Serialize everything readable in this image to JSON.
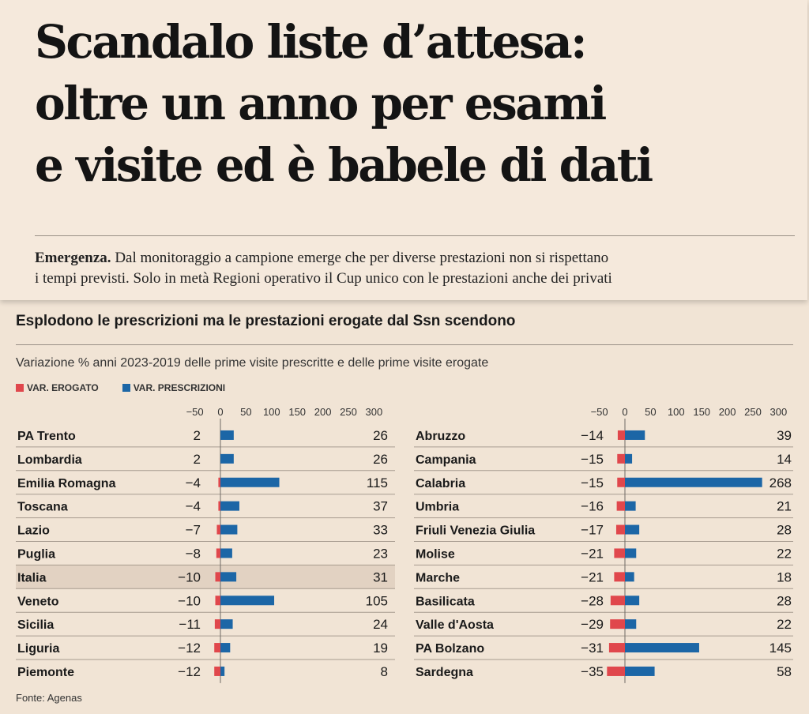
{
  "headline": [
    "Scandalo liste d’attesa:",
    "oltre un anno per esami",
    "e visite ed è babele di dati"
  ],
  "subtitle": {
    "lead": "Emergenza.",
    "line1": "Dal monitoraggio a campione emerge che per diverse prestazioni non si rispettano",
    "line2": "i tempi previsti. Solo in metà Regioni operativo il Cup unico con le prestazioni anche dei privati"
  },
  "source": "Fonte: Agenas",
  "colors": {
    "erogato": "#e0474c",
    "prescrizioni": "#1c66a6",
    "highlight": "#e2d2c2"
  },
  "chart_data": {
    "type": "bar",
    "title": "Esplodono le prescrizioni ma le prestazioni erogate dal Ssn scendono",
    "subtitle": "Variazione % anni 2023-2019 delle prime visite prescritte e delle prime visite erogate",
    "xlim": [
      -50,
      300
    ],
    "ticks": [
      "−50",
      "0",
      "50",
      "100",
      "150",
      "200",
      "250",
      "300"
    ],
    "tick_values": [
      -50,
      0,
      50,
      100,
      150,
      200,
      250,
      300
    ],
    "legend": [
      {
        "name": "VAR. EROGATO",
        "color": "#e0474c"
      },
      {
        "name": "VAR. PRESCRIZIONI",
        "color": "#1c66a6"
      }
    ],
    "highlight": "Italia",
    "panels": [
      {
        "rows": [
          {
            "region": "PA Trento",
            "erogato": 2,
            "prescrizioni": 26,
            "erogato_label": "2",
            "prescrizioni_label": "26"
          },
          {
            "region": "Lombardia",
            "erogato": 2,
            "prescrizioni": 26,
            "erogato_label": "2",
            "prescrizioni_label": "26"
          },
          {
            "region": "Emilia Romagna",
            "erogato": -4,
            "prescrizioni": 115,
            "erogato_label": "−4",
            "prescrizioni_label": "115"
          },
          {
            "region": "Toscana",
            "erogato": -4,
            "prescrizioni": 37,
            "erogato_label": "−4",
            "prescrizioni_label": "37"
          },
          {
            "region": "Lazio",
            "erogato": -7,
            "prescrizioni": 33,
            "erogato_label": "−7",
            "prescrizioni_label": "33"
          },
          {
            "region": "Puglia",
            "erogato": -8,
            "prescrizioni": 23,
            "erogato_label": "−8",
            "prescrizioni_label": "23"
          },
          {
            "region": "Italia",
            "erogato": -10,
            "prescrizioni": 31,
            "erogato_label": "−10",
            "prescrizioni_label": "31"
          },
          {
            "region": "Veneto",
            "erogato": -10,
            "prescrizioni": 105,
            "erogato_label": "−10",
            "prescrizioni_label": "105"
          },
          {
            "region": "Sicilia",
            "erogato": -11,
            "prescrizioni": 24,
            "erogato_label": "−11",
            "prescrizioni_label": "24"
          },
          {
            "region": "Liguria",
            "erogato": -12,
            "prescrizioni": 19,
            "erogato_label": "−12",
            "prescrizioni_label": "19"
          },
          {
            "region": "Piemonte",
            "erogato": -12,
            "prescrizioni": 8,
            "erogato_label": "−12",
            "prescrizioni_label": "8"
          }
        ]
      },
      {
        "rows": [
          {
            "region": "Abruzzo",
            "erogato": -14,
            "prescrizioni": 39,
            "erogato_label": "−14",
            "prescrizioni_label": "39"
          },
          {
            "region": "Campania",
            "erogato": -15,
            "prescrizioni": 14,
            "erogato_label": "−15",
            "prescrizioni_label": "14"
          },
          {
            "region": "Calabria",
            "erogato": -15,
            "prescrizioni": 268,
            "erogato_label": "−15",
            "prescrizioni_label": "268"
          },
          {
            "region": "Umbria",
            "erogato": -16,
            "prescrizioni": 21,
            "erogato_label": "−16",
            "prescrizioni_label": "21"
          },
          {
            "region": "Friuli Venezia Giulia",
            "erogato": -17,
            "prescrizioni": 28,
            "erogato_label": "−17",
            "prescrizioni_label": "28"
          },
          {
            "region": "Molise",
            "erogato": -21,
            "prescrizioni": 22,
            "erogato_label": "−21",
            "prescrizioni_label": "22"
          },
          {
            "region": "Marche",
            "erogato": -21,
            "prescrizioni": 18,
            "erogato_label": "−21",
            "prescrizioni_label": "18"
          },
          {
            "region": "Basilicata",
            "erogato": -28,
            "prescrizioni": 28,
            "erogato_label": "−28",
            "prescrizioni_label": "28"
          },
          {
            "region": "Valle d'Aosta",
            "erogato": -29,
            "prescrizioni": 22,
            "erogato_label": "−29",
            "prescrizioni_label": "22"
          },
          {
            "region": "PA Bolzano",
            "erogato": -31,
            "prescrizioni": 145,
            "erogato_label": "−31",
            "prescrizioni_label": "145"
          },
          {
            "region": "Sardegna",
            "erogato": -35,
            "prescrizioni": 58,
            "erogato_label": "−35",
            "prescrizioni_label": "58"
          }
        ]
      }
    ]
  }
}
